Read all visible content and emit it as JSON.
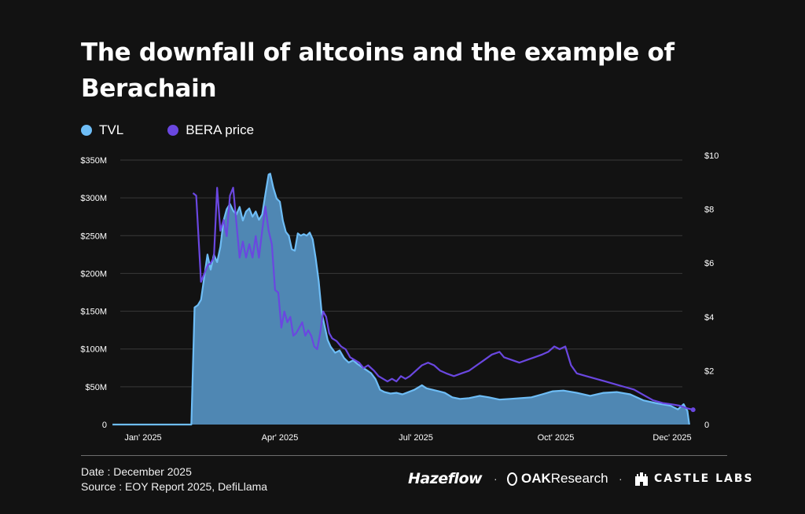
{
  "header": {
    "title": "The downfall of altcoins and the example of Berachain"
  },
  "legend": [
    {
      "label": "TVL",
      "color": "#6ebdf6"
    },
    {
      "label": "BERA price",
      "color": "#6a47e0"
    }
  ],
  "footer": {
    "date": "Date : December 2025",
    "source": "Source : EOY Report 2025, DefiLlama",
    "brands": {
      "hazeflow": "Hazeflow",
      "oak_strong": "OAK",
      "oak_rest": "Research",
      "castle": "CASTLE LABS",
      "separator": "·"
    }
  },
  "chart_data": {
    "type": "area",
    "x_tick_labels": [
      "Jan' 2025",
      "Apr' 2025",
      "Jul' 2025",
      "Oct' 2025",
      "Dec' 2025"
    ],
    "x_tick_dates": [
      "2025-01-06",
      "2025-04-01",
      "2025-07-01",
      "2025-10-01",
      "2025-12-01"
    ],
    "y_left": {
      "ticks": [
        0,
        50,
        100,
        150,
        200,
        250,
        300,
        350
      ],
      "tick_labels": [
        "0",
        "$50M",
        "$100M",
        "$150M",
        "$200M",
        "$250M",
        "$300M",
        "$350M"
      ],
      "ylim": [
        0,
        350
      ],
      "unit": "$M"
    },
    "y_right": {
      "ticks": [
        0,
        2,
        4,
        6,
        8,
        10
      ],
      "tick_labels": [
        "0",
        "$2",
        "$4",
        "$6",
        "$8",
        "$10"
      ],
      "ylim": [
        0,
        10
      ],
      "unit": "$"
    },
    "grid": true,
    "legend_position": "top-left",
    "series": [
      {
        "name": "TVL",
        "axis": "left",
        "type": "area",
        "color": "#6ebdf6",
        "fill": "#4f87b3",
        "points": [
          [
            "2024-12-18",
            0
          ],
          [
            "2025-02-05",
            0
          ],
          [
            "2025-02-07",
            155
          ],
          [
            "2025-02-09",
            158
          ],
          [
            "2025-02-11",
            165
          ],
          [
            "2025-02-13",
            195
          ],
          [
            "2025-02-15",
            225
          ],
          [
            "2025-02-17",
            205
          ],
          [
            "2025-02-19",
            225
          ],
          [
            "2025-02-21",
            215
          ],
          [
            "2025-02-23",
            235
          ],
          [
            "2025-02-25",
            270
          ],
          [
            "2025-02-27",
            285
          ],
          [
            "2025-03-01",
            292
          ],
          [
            "2025-03-03",
            283
          ],
          [
            "2025-03-05",
            278
          ],
          [
            "2025-03-07",
            288
          ],
          [
            "2025-03-09",
            270
          ],
          [
            "2025-03-11",
            282
          ],
          [
            "2025-03-13",
            286
          ],
          [
            "2025-03-15",
            275
          ],
          [
            "2025-03-17",
            282
          ],
          [
            "2025-03-19",
            271
          ],
          [
            "2025-03-21",
            278
          ],
          [
            "2025-03-23",
            305
          ],
          [
            "2025-03-25",
            331
          ],
          [
            "2025-03-26",
            332
          ],
          [
            "2025-03-28",
            313
          ],
          [
            "2025-03-30",
            299
          ],
          [
            "2025-04-01",
            295
          ],
          [
            "2025-04-03",
            270
          ],
          [
            "2025-04-05",
            255
          ],
          [
            "2025-04-07",
            250
          ],
          [
            "2025-04-09",
            232
          ],
          [
            "2025-04-11",
            230
          ],
          [
            "2025-04-13",
            253
          ],
          [
            "2025-04-15",
            250
          ],
          [
            "2025-04-17",
            252
          ],
          [
            "2025-04-19",
            250
          ],
          [
            "2025-04-21",
            254
          ],
          [
            "2025-04-23",
            245
          ],
          [
            "2025-04-25",
            220
          ],
          [
            "2025-04-27",
            190
          ],
          [
            "2025-04-29",
            148
          ],
          [
            "2025-05-01",
            130
          ],
          [
            "2025-05-03",
            112
          ],
          [
            "2025-05-05",
            103
          ],
          [
            "2025-05-08",
            95
          ],
          [
            "2025-05-11",
            98
          ],
          [
            "2025-05-14",
            88
          ],
          [
            "2025-05-17",
            82
          ],
          [
            "2025-05-20",
            85
          ],
          [
            "2025-05-23",
            80
          ],
          [
            "2025-05-26",
            76
          ],
          [
            "2025-05-29",
            72
          ],
          [
            "2025-06-01",
            68
          ],
          [
            "2025-06-04",
            60
          ],
          [
            "2025-06-07",
            46
          ],
          [
            "2025-06-10",
            43
          ],
          [
            "2025-06-14",
            41
          ],
          [
            "2025-06-18",
            42
          ],
          [
            "2025-06-22",
            40
          ],
          [
            "2025-06-26",
            43
          ],
          [
            "2025-06-30",
            46
          ],
          [
            "2025-07-05",
            52
          ],
          [
            "2025-07-08",
            48
          ],
          [
            "2025-07-12",
            46
          ],
          [
            "2025-07-16",
            44
          ],
          [
            "2025-07-20",
            42
          ],
          [
            "2025-07-25",
            36
          ],
          [
            "2025-07-30",
            34
          ],
          [
            "2025-08-05",
            35
          ],
          [
            "2025-08-12",
            38
          ],
          [
            "2025-08-18",
            36
          ],
          [
            "2025-08-25",
            33
          ],
          [
            "2025-09-01",
            34
          ],
          [
            "2025-09-08",
            35
          ],
          [
            "2025-09-15",
            36
          ],
          [
            "2025-09-22",
            40
          ],
          [
            "2025-09-29",
            44
          ],
          [
            "2025-10-05",
            45
          ],
          [
            "2025-10-12",
            42
          ],
          [
            "2025-10-19",
            38
          ],
          [
            "2025-10-26",
            42
          ],
          [
            "2025-11-02",
            43
          ],
          [
            "2025-11-09",
            40
          ],
          [
            "2025-11-16",
            32
          ],
          [
            "2025-11-23",
            28
          ],
          [
            "2025-11-30",
            25
          ],
          [
            "2025-12-04",
            20
          ],
          [
            "2025-12-07",
            27
          ],
          [
            "2025-12-09",
            18
          ],
          [
            "2025-12-10",
            0
          ]
        ]
      },
      {
        "name": "BERA price",
        "axis": "right",
        "type": "line",
        "color": "#6a47e0",
        "points": [
          [
            "2025-02-06",
            8.6
          ],
          [
            "2025-02-08",
            8.5
          ],
          [
            "2025-02-11",
            5.3
          ],
          [
            "2025-02-13",
            5.6
          ],
          [
            "2025-02-15",
            5.9
          ],
          [
            "2025-02-17",
            6.0
          ],
          [
            "2025-02-19",
            6.2
          ],
          [
            "2025-02-21",
            8.8
          ],
          [
            "2025-02-23",
            7.2
          ],
          [
            "2025-02-25",
            7.6
          ],
          [
            "2025-02-27",
            7.0
          ],
          [
            "2025-03-01",
            8.5
          ],
          [
            "2025-03-03",
            8.8
          ],
          [
            "2025-03-05",
            7.5
          ],
          [
            "2025-03-07",
            6.2
          ],
          [
            "2025-03-09",
            6.8
          ],
          [
            "2025-03-11",
            6.2
          ],
          [
            "2025-03-13",
            6.7
          ],
          [
            "2025-03-15",
            6.2
          ],
          [
            "2025-03-17",
            7.0
          ],
          [
            "2025-03-19",
            6.2
          ],
          [
            "2025-03-21",
            7.2
          ],
          [
            "2025-03-23",
            8.1
          ],
          [
            "2025-03-25",
            7.2
          ],
          [
            "2025-03-27",
            6.7
          ],
          [
            "2025-03-29",
            5.0
          ],
          [
            "2025-03-31",
            4.9
          ],
          [
            "2025-04-02",
            3.6
          ],
          [
            "2025-04-04",
            4.2
          ],
          [
            "2025-04-06",
            3.8
          ],
          [
            "2025-04-08",
            4.0
          ],
          [
            "2025-04-10",
            3.3
          ],
          [
            "2025-04-12",
            3.4
          ],
          [
            "2025-04-14",
            3.6
          ],
          [
            "2025-04-16",
            3.8
          ],
          [
            "2025-04-18",
            3.3
          ],
          [
            "2025-04-20",
            3.5
          ],
          [
            "2025-04-22",
            3.3
          ],
          [
            "2025-04-24",
            2.9
          ],
          [
            "2025-04-26",
            2.8
          ],
          [
            "2025-04-28",
            3.4
          ],
          [
            "2025-04-30",
            4.2
          ],
          [
            "2025-05-02",
            4.0
          ],
          [
            "2025-05-04",
            3.4
          ],
          [
            "2025-05-06",
            3.2
          ],
          [
            "2025-05-09",
            3.1
          ],
          [
            "2025-05-12",
            2.9
          ],
          [
            "2025-05-15",
            2.8
          ],
          [
            "2025-05-18",
            2.5
          ],
          [
            "2025-05-21",
            2.4
          ],
          [
            "2025-05-24",
            2.3
          ],
          [
            "2025-05-27",
            2.1
          ],
          [
            "2025-05-30",
            2.2
          ],
          [
            "2025-06-03",
            2.0
          ],
          [
            "2025-06-06",
            1.8
          ],
          [
            "2025-06-09",
            1.7
          ],
          [
            "2025-06-12",
            1.6
          ],
          [
            "2025-06-15",
            1.7
          ],
          [
            "2025-06-18",
            1.6
          ],
          [
            "2025-06-21",
            1.8
          ],
          [
            "2025-06-24",
            1.7
          ],
          [
            "2025-06-27",
            1.8
          ],
          [
            "2025-07-01",
            2.0
          ],
          [
            "2025-07-05",
            2.2
          ],
          [
            "2025-07-09",
            2.3
          ],
          [
            "2025-07-13",
            2.2
          ],
          [
            "2025-07-17",
            2.0
          ],
          [
            "2025-07-21",
            1.9
          ],
          [
            "2025-07-26",
            1.8
          ],
          [
            "2025-07-31",
            1.9
          ],
          [
            "2025-08-05",
            2.0
          ],
          [
            "2025-08-10",
            2.2
          ],
          [
            "2025-08-15",
            2.4
          ],
          [
            "2025-08-20",
            2.6
          ],
          [
            "2025-08-25",
            2.7
          ],
          [
            "2025-08-28",
            2.5
          ],
          [
            "2025-09-02",
            2.4
          ],
          [
            "2025-09-07",
            2.3
          ],
          [
            "2025-09-12",
            2.4
          ],
          [
            "2025-09-17",
            2.5
          ],
          [
            "2025-09-22",
            2.6
          ],
          [
            "2025-09-26",
            2.7
          ],
          [
            "2025-09-30",
            2.9
          ],
          [
            "2025-10-03",
            2.8
          ],
          [
            "2025-10-06",
            2.9
          ],
          [
            "2025-10-09",
            2.2
          ],
          [
            "2025-10-12",
            1.9
          ],
          [
            "2025-10-17",
            1.8
          ],
          [
            "2025-10-22",
            1.7
          ],
          [
            "2025-10-27",
            1.6
          ],
          [
            "2025-11-01",
            1.5
          ],
          [
            "2025-11-06",
            1.4
          ],
          [
            "2025-11-11",
            1.3
          ],
          [
            "2025-11-16",
            1.1
          ],
          [
            "2025-11-21",
            0.9
          ],
          [
            "2025-11-26",
            0.8
          ],
          [
            "2025-12-01",
            0.75
          ],
          [
            "2025-12-05",
            0.7
          ],
          [
            "2025-12-09",
            0.6
          ],
          [
            "2025-12-12",
            0.55
          ]
        ]
      }
    ]
  }
}
